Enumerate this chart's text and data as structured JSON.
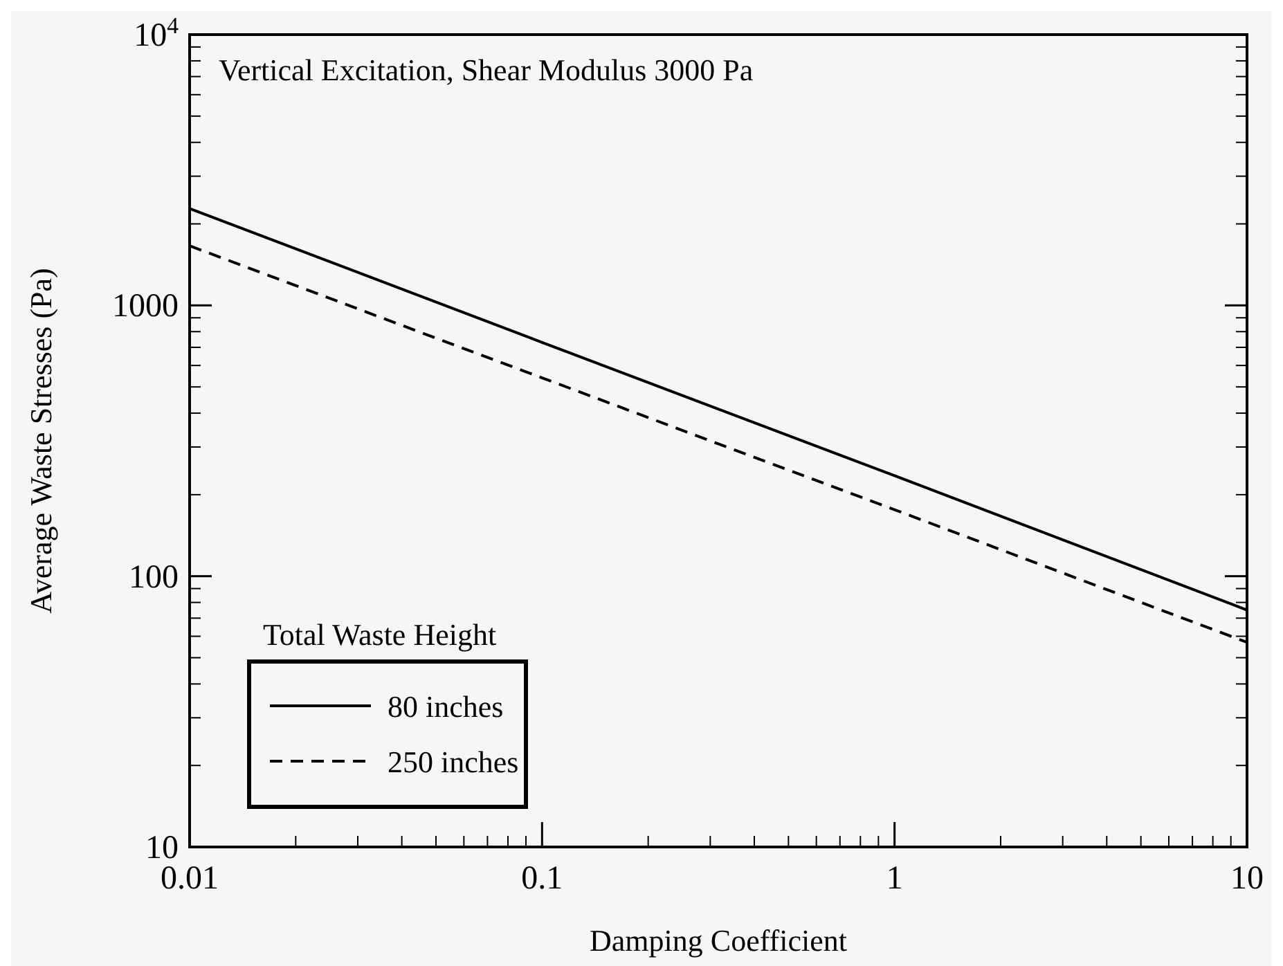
{
  "chart_data": {
    "type": "line",
    "title": "Vertical Excitation, Shear Modulus 3000 Pa",
    "xlabel": "Damping Coefficient",
    "ylabel": "Average Waste Stresses (Pa)",
    "legend_title": "Total Waste Height",
    "log": "xy",
    "x": [
      0.01,
      0.1,
      1,
      10
    ],
    "series": [
      {
        "name": "80 inches",
        "color": "#000000",
        "values": [
          2280,
          730,
          235,
          75
        ],
        "line_style": "solid"
      },
      {
        "name": "250 inches",
        "color": "#000000",
        "values": [
          1660,
          540,
          176,
          57
        ],
        "line_style": "dashed"
      }
    ],
    "xlim": [
      0.01,
      10
    ],
    "ylim": [
      10,
      10000
    ],
    "xticks": [
      0.01,
      0.1,
      1,
      10
    ],
    "yticks": [
      10,
      100,
      1000,
      {
        "value": 10000,
        "label": "10$^{4}$"
      }
    ],
    "grid": false,
    "legend": "bottom left",
    "marker": "none"
  }
}
